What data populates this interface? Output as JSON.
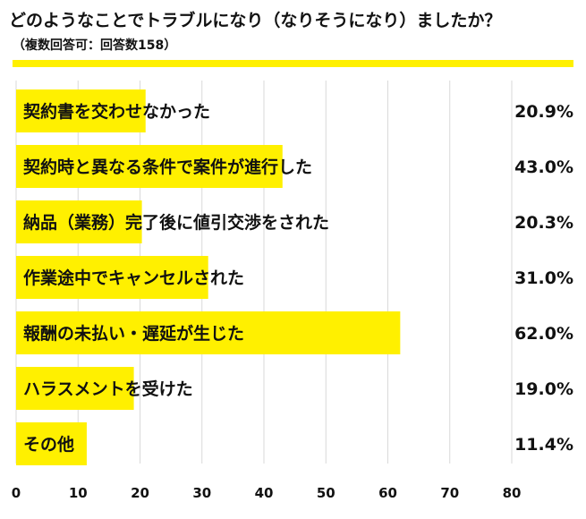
{
  "title": "どのようなことでトラブルになり（なりそうになり）ましたか？",
  "subtitle": "（複数回答可：回答数158）",
  "colors": {
    "bar": "#fff000",
    "grid": "#d9d9d9",
    "text": "#111111",
    "rule": "#fff000"
  },
  "chart_data": {
    "type": "bar",
    "orientation": "horizontal",
    "categories": [
      "契約書を交わせなかった",
      "契約時と異なる条件で案件が進行した",
      "納品（業務）完了後に値引交渉をされた",
      "作業途中でキャンセルされた",
      "報酬の未払い・遅延が生じた",
      "ハラスメントを受けた",
      "その他"
    ],
    "values": [
      20.9,
      43.0,
      20.3,
      31.0,
      62.0,
      19.0,
      11.4
    ],
    "value_labels": [
      "20.9%",
      "43.0%",
      "20.3%",
      "31.0%",
      "62.0%",
      "19.0%",
      "11.4%"
    ],
    "xlim": [
      0,
      80
    ],
    "xticks": [
      0,
      10,
      20,
      30,
      40,
      50,
      60,
      70,
      80
    ],
    "grid": true
  }
}
